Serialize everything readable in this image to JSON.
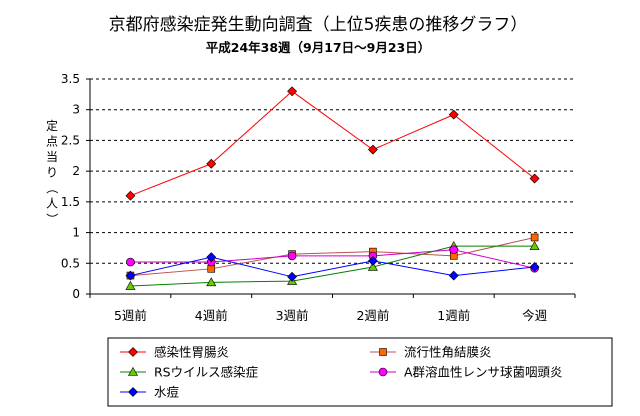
{
  "chart_data": {
    "type": "line",
    "title": "京都府感染症発生動向調査（上位5疾患の推移グラフ）",
    "subtitle": "平成24年38週（9月17日〜9月23日）",
    "ylabel": "定点当り（人）",
    "xlabel": "",
    "ylim": [
      0,
      3.5
    ],
    "yticks": [
      "0",
      "0.5",
      "1",
      "1.5",
      "2",
      "2.5",
      "3",
      "3.5"
    ],
    "ytick_values": [
      0,
      0.5,
      1,
      1.5,
      2,
      2.5,
      3,
      3.5
    ],
    "grid": "horizontal-dashed",
    "legend_position": "bottom",
    "categories": [
      "5週前",
      "4週前",
      "3週前",
      "2週前",
      "1週前",
      "今週"
    ],
    "series": [
      {
        "name": "感染性胃腸炎",
        "color": "#ff0000",
        "marker_color": "#ff0000",
        "marker": "diamond",
        "values": [
          1.6,
          2.12,
          3.3,
          2.35,
          2.92,
          1.88
        ]
      },
      {
        "name": "流行性角結膜炎",
        "color": "#c0504d",
        "marker_color": "#ff6600",
        "marker": "square",
        "values": [
          0.3,
          0.41,
          0.65,
          0.69,
          0.62,
          0.92
        ]
      },
      {
        "name": "RSウイルス感染症",
        "color": "#008000",
        "marker_color": "#66cc00",
        "marker": "triangle",
        "values": [
          0.13,
          0.19,
          0.21,
          0.44,
          0.78,
          0.78
        ]
      },
      {
        "name": "A群溶血性レンサ球菌咽頭炎",
        "color": "#cc00cc",
        "marker_color": "#ff00ff",
        "marker": "circle",
        "values": [
          0.52,
          0.52,
          0.62,
          0.62,
          0.72,
          0.42
        ]
      },
      {
        "name": "水痘",
        "color": "#0000ff",
        "marker_color": "#0000ff",
        "marker": "diamond",
        "values": [
          0.3,
          0.6,
          0.28,
          0.54,
          0.3,
          0.44
        ]
      }
    ]
  }
}
